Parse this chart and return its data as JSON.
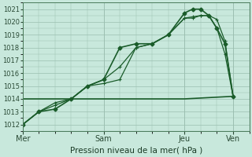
{
  "xlabel": "Pression niveau de la mer( hPa )",
  "background_color": "#c8e8dc",
  "plot_bg_color": "#c8e8dc",
  "grid_color": "#9bbfb0",
  "line_color": "#1a5c2a",
  "ylim": [
    1011.5,
    1021.5
  ],
  "ytick_vals": [
    1012,
    1013,
    1014,
    1015,
    1016,
    1017,
    1018,
    1019,
    1020,
    1021
  ],
  "xtick_labels": [
    "Mer",
    "Sam",
    "Jeu",
    "Ven"
  ],
  "xtick_positions": [
    0,
    5,
    10,
    13
  ],
  "xlim": [
    0,
    14
  ],
  "series1_x": [
    0,
    1,
    2,
    3,
    4,
    5,
    6,
    7,
    8,
    9,
    10,
    10.5,
    11,
    11.5,
    12,
    12.5,
    13
  ],
  "series1_y": [
    1012.0,
    1013.0,
    1013.5,
    1014.0,
    1015.0,
    1015.2,
    1015.5,
    1018.0,
    1018.3,
    1019.0,
    1020.3,
    1020.4,
    1020.5,
    1020.5,
    1019.5,
    1017.5,
    1014.2
  ],
  "series2_x": [
    0,
    1,
    2,
    3,
    4,
    5,
    6,
    7,
    8,
    9,
    10,
    10.5,
    11,
    11.5,
    12,
    12.5,
    13
  ],
  "series2_y": [
    1012.0,
    1013.0,
    1013.7,
    1014.0,
    1015.0,
    1015.5,
    1016.5,
    1018.0,
    1018.3,
    1019.0,
    1020.3,
    1020.3,
    1020.5,
    1020.5,
    1020.2,
    1018.5,
    1014.2
  ],
  "series3_x": [
    0,
    5,
    10,
    13
  ],
  "series3_y": [
    1014.0,
    1014.0,
    1014.0,
    1014.2
  ],
  "series4_x": [
    0,
    1,
    2,
    3,
    4,
    5,
    6,
    7,
    8,
    9,
    10,
    10.5,
    11,
    11.5,
    12,
    12.5,
    13
  ],
  "series4_y": [
    1012.0,
    1013.0,
    1013.2,
    1014.0,
    1015.0,
    1015.5,
    1018.0,
    1018.3,
    1018.3,
    1019.0,
    1020.7,
    1021.0,
    1021.0,
    1020.5,
    1019.5,
    1018.3,
    1014.2
  ]
}
